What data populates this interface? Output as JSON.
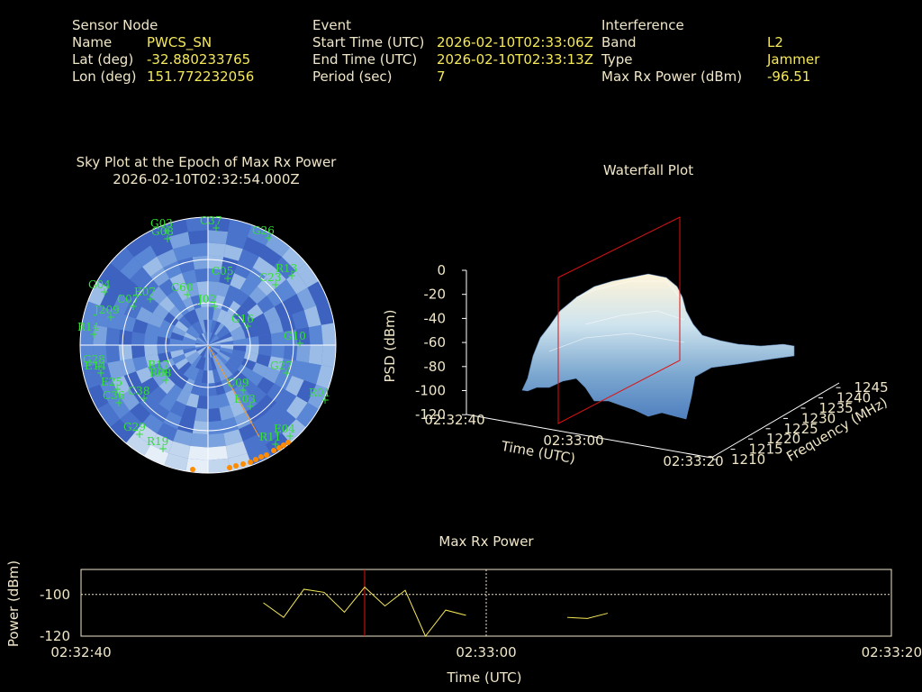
{
  "info": {
    "sensor": {
      "heading": "Sensor Node",
      "rows": [
        {
          "label": "Name",
          "value": "PWCS_SN"
        },
        {
          "label": "Lat (deg)",
          "value": "-32.880233765"
        },
        {
          "label": "Lon (deg)",
          "value": "151.772232056"
        }
      ]
    },
    "event": {
      "heading": "Event",
      "rows": [
        {
          "label": "Start Time (UTC)",
          "value": "2026-02-10T02:33:06Z"
        },
        {
          "label": "End Time (UTC)",
          "value": "2026-02-10T02:33:13Z"
        },
        {
          "label": "Period (sec)",
          "value": "7"
        }
      ]
    },
    "interference": {
      "heading": "Interference",
      "rows": [
        {
          "label": "Band",
          "value": "L2"
        },
        {
          "label": "Type",
          "value": "Jammer"
        },
        {
          "label": "Max Rx Power (dBm)",
          "value": "-96.51"
        }
      ]
    }
  },
  "skyplot": {
    "title_line1": "Sky Plot at the Epoch of Max Rx Power",
    "title_line2": "2026-02-10T02:32:54.000Z",
    "satellites": [
      "C37",
      "G03",
      "G08",
      "G26",
      "R13",
      "C23",
      "G04",
      "C07",
      "R14",
      "J209",
      "G16",
      "G10",
      "G28",
      "G27",
      "R01",
      "E04",
      "R11",
      "G29",
      "R19",
      "E14",
      "C36",
      "C38",
      "C60",
      "E07",
      "C05",
      "R17",
      "R08",
      "C09",
      "E03",
      "E25",
      "J02"
    ]
  },
  "waterfall": {
    "title": "Waterfall Plot",
    "z_label": "PSD (dBm)",
    "x_label": "Time (UTC)",
    "y_label": "Frequency (MHz)",
    "z_ticks": [
      "0",
      "-20",
      "-40",
      "-60",
      "-80",
      "-100",
      "-120"
    ],
    "x_ticks": [
      "02:32:40",
      "02:33:00",
      "02:33:20"
    ],
    "y_ticks": [
      "1210",
      "1215",
      "1220",
      "1225",
      "1230",
      "1235",
      "1240",
      "1245"
    ]
  },
  "maxrx": {
    "title": "Max Rx Power",
    "y_label": "Power (dBm)",
    "x_label": "Time (UTC)",
    "y_ticks": [
      "-100",
      "-120"
    ],
    "x_ticks": [
      "02:32:40",
      "02:33:00",
      "02:33:20"
    ]
  },
  "chart_data": [
    {
      "type": "line",
      "title": "Max Rx Power",
      "xlabel": "Time (UTC)",
      "ylabel": "Power (dBm)",
      "x_ticks": [
        "02:32:40",
        "02:33:00",
        "02:33:20"
      ],
      "ylim": [
        -120,
        -88
      ],
      "reference_line_y": -100,
      "marker_time_sec": 14,
      "series": [
        {
          "values": [
            [
              9,
              -104
            ],
            [
              10,
              -111
            ],
            [
              11,
              -97.5
            ],
            [
              12,
              -99
            ],
            [
              13,
              -108.5
            ],
            [
              14,
              -96.5
            ],
            [
              15,
              -105.5
            ],
            [
              16,
              -98
            ],
            [
              17,
              -121
            ],
            [
              18,
              -107.5
            ],
            [
              19,
              -110
            ]
          ]
        },
        {
          "values": [
            [
              24,
              -111
            ],
            [
              25,
              -111.5
            ],
            [
              26,
              -109
            ]
          ]
        }
      ]
    },
    {
      "type": "area",
      "title": "Waterfall Plot",
      "xlabel": "Time (UTC)",
      "ylabel": "Frequency (MHz)",
      "zlabel": "PSD (dBm)",
      "x_ticks": [
        "02:32:40",
        "02:33:00",
        "02:33:20"
      ],
      "ylim": [
        1210,
        1245
      ],
      "zlim": [
        -120,
        0
      ]
    }
  ]
}
